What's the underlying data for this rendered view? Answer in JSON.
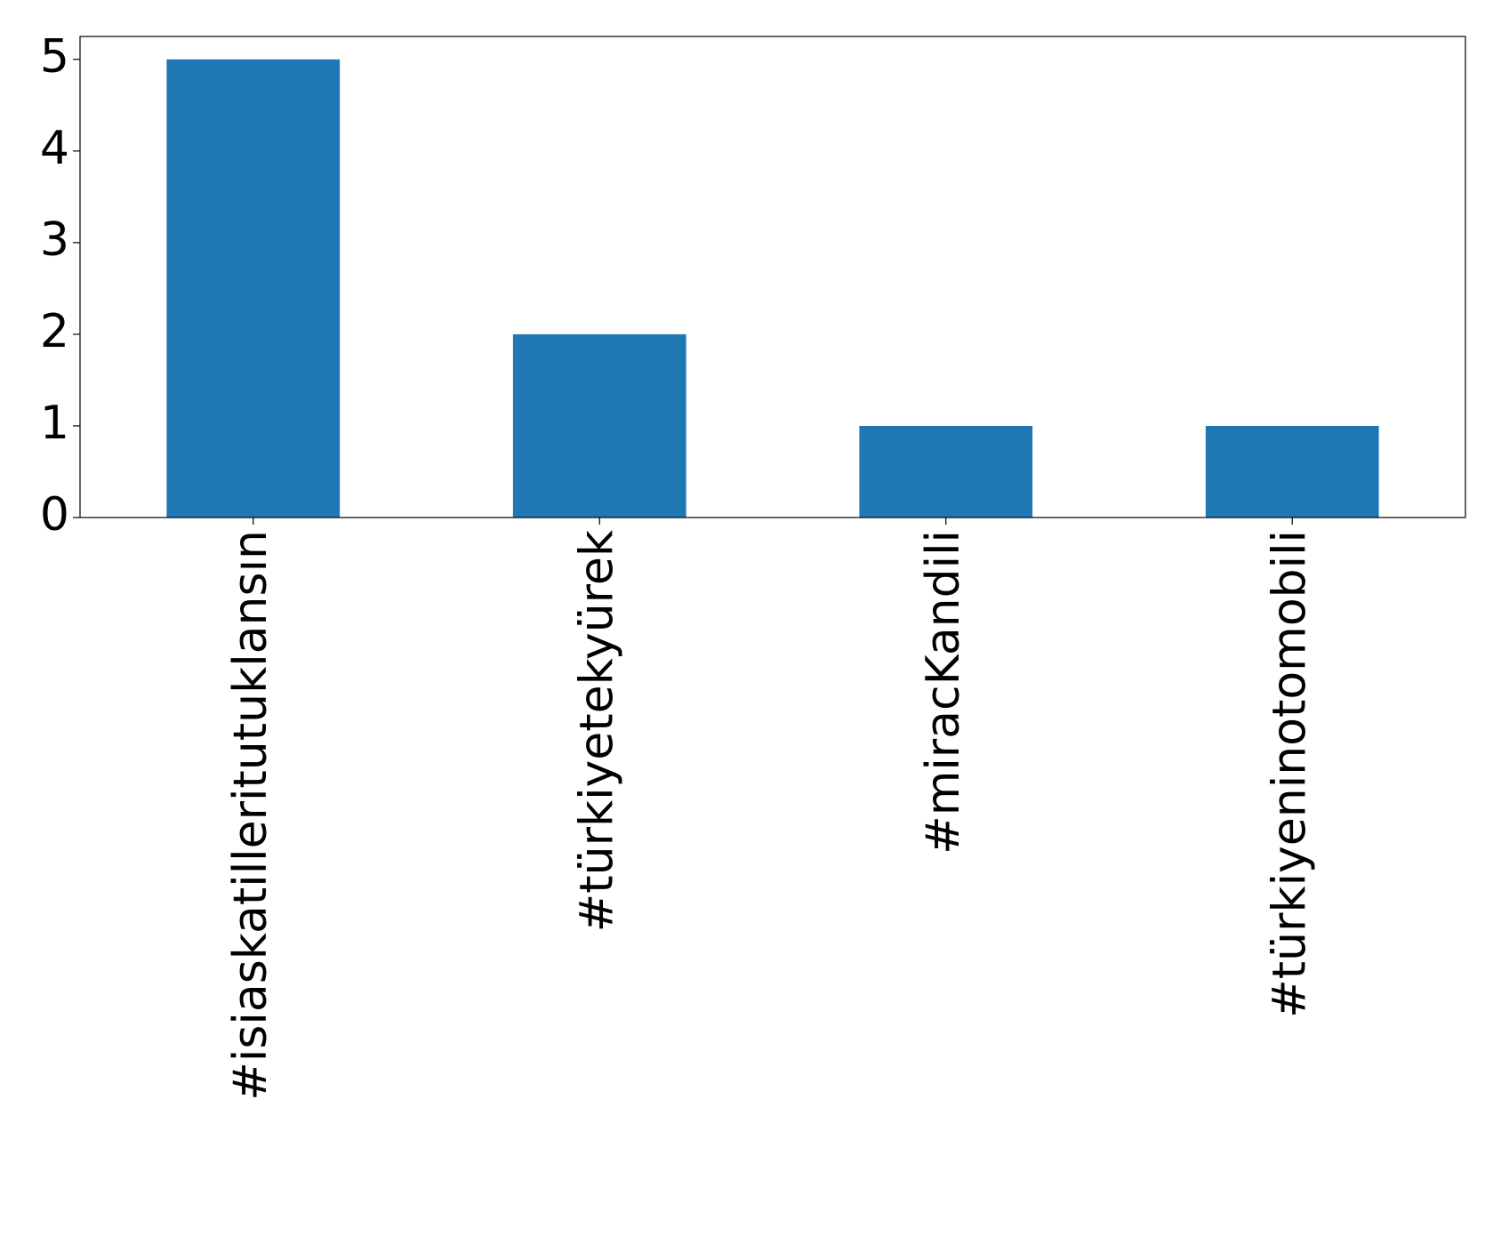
{
  "chart_data": {
    "type": "bar",
    "categories": [
      "#isiaskatilleritutuklansın",
      "#türkiyetekyürek",
      "#miracKandili",
      "#türkiyeninotomobili"
    ],
    "values": [
      5,
      2,
      1,
      1
    ],
    "color": "#1f77b4",
    "ylim": [
      0,
      5.25
    ],
    "yticks": [
      0,
      1,
      2,
      3,
      4,
      5
    ],
    "grid": false
  }
}
